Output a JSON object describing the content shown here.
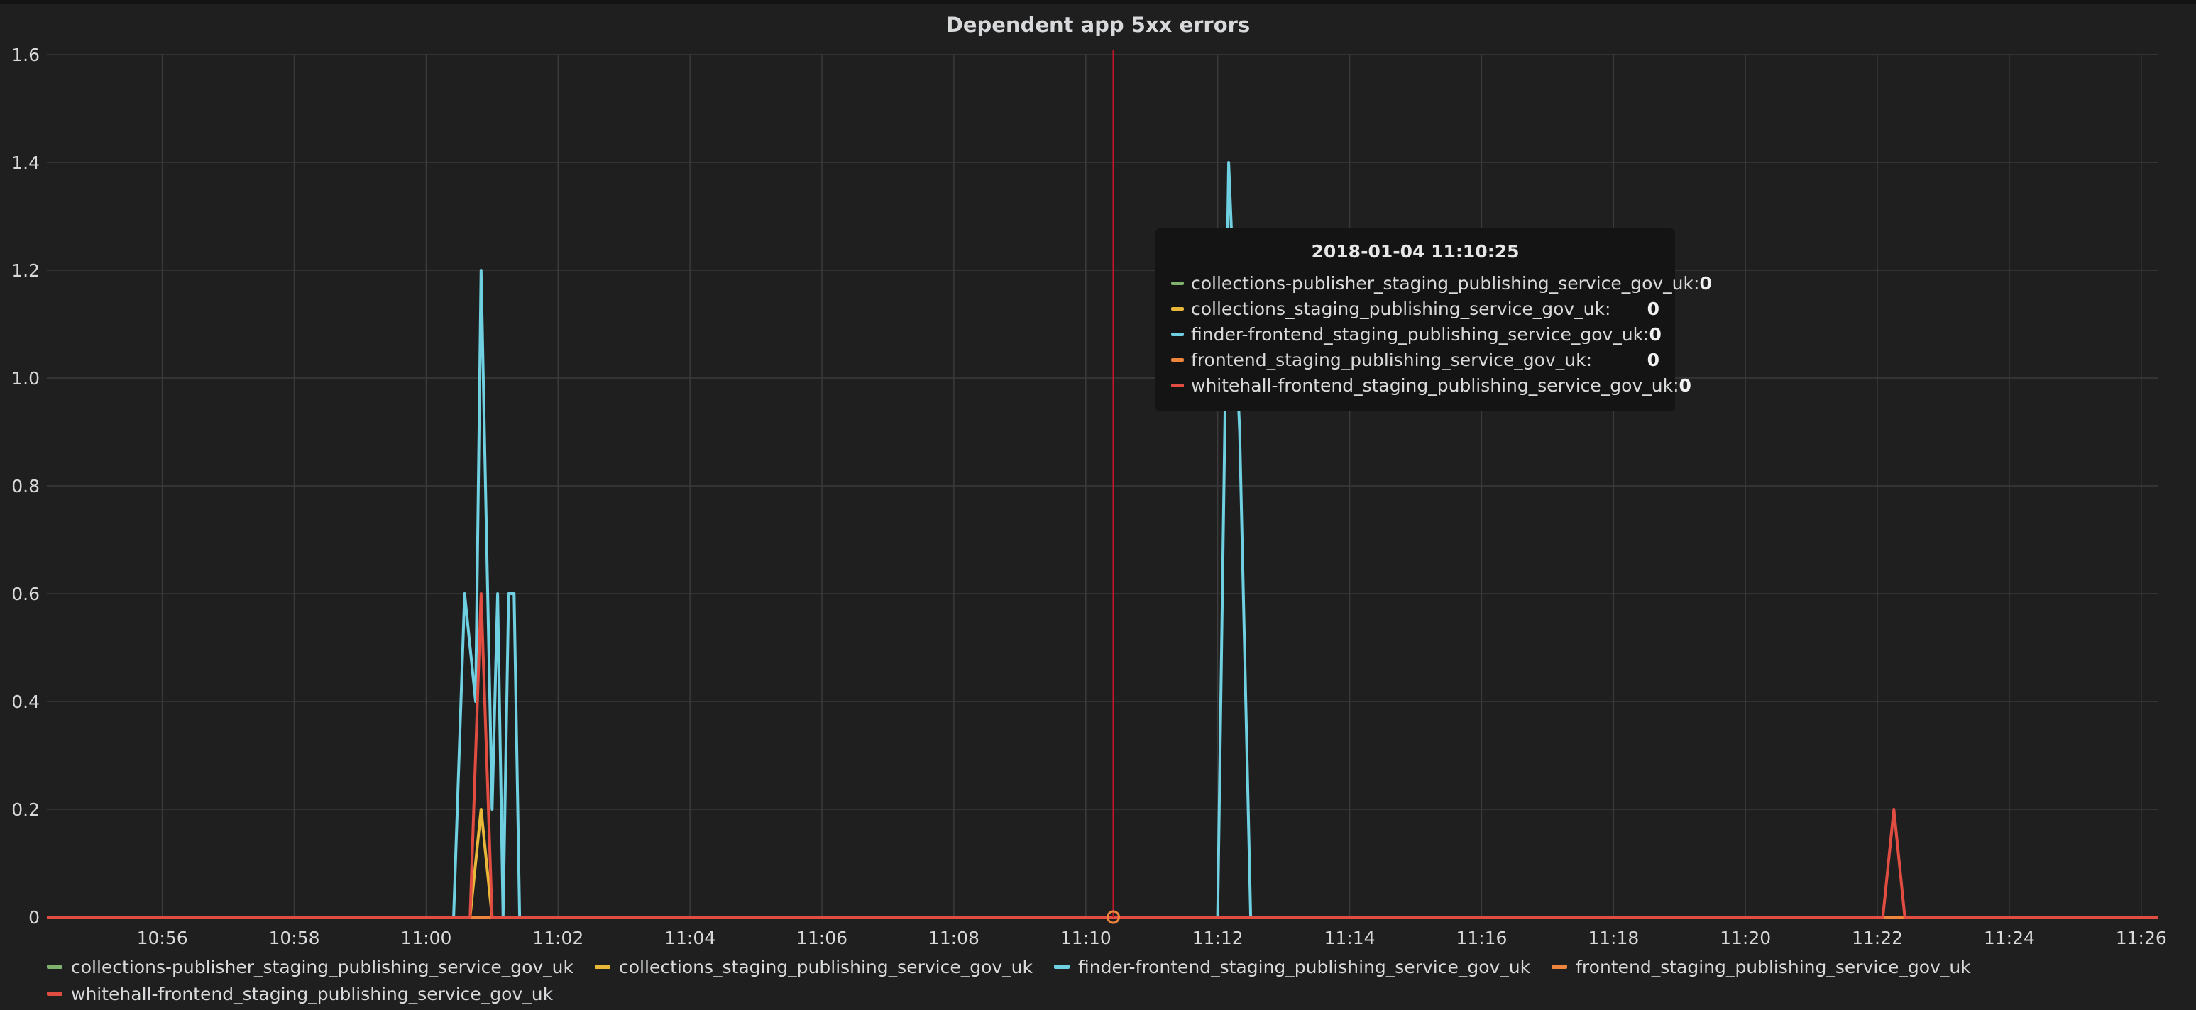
{
  "panel": {
    "title": "Dependent app 5xx errors"
  },
  "chart_data": {
    "type": "line",
    "title": "Dependent app 5xx errors",
    "xlabel": "",
    "ylabel": "",
    "x_unit": "time (HH:MM)",
    "xlim": [
      "10:54:15",
      "11:26:15"
    ],
    "ylim": [
      0,
      1.6
    ],
    "x_ticks": [
      "10:56",
      "10:58",
      "11:00",
      "11:02",
      "11:04",
      "11:06",
      "11:08",
      "11:10",
      "11:12",
      "11:14",
      "11:16",
      "11:18",
      "11:20",
      "11:22",
      "11:24",
      "11:26"
    ],
    "y_ticks": [
      "0",
      "0.2",
      "0.4",
      "0.6",
      "0.8",
      "1.0",
      "1.2",
      "1.4",
      "1.6"
    ],
    "grid": true,
    "legend_position": "bottom",
    "series": [
      {
        "name": "collections-publisher_staging_publishing_service_gov_uk",
        "color": "#7eb26d",
        "points": [
          [
            "10:54:15",
            0
          ],
          [
            "11:26:15",
            0
          ]
        ]
      },
      {
        "name": "collections_staging_publishing_service_gov_uk",
        "color": "#eab839",
        "points": [
          [
            "10:54:15",
            0
          ],
          [
            "11:00:40",
            0
          ],
          [
            "11:00:50",
            0.2
          ],
          [
            "11:01:00",
            0
          ],
          [
            "11:26:15",
            0
          ]
        ]
      },
      {
        "name": "finder-frontend_staging_publishing_service_gov_uk",
        "color": "#6ed0e0",
        "points": [
          [
            "10:54:15",
            0
          ],
          [
            "11:00:25",
            0
          ],
          [
            "11:00:35",
            0.6
          ],
          [
            "11:00:45",
            0.4
          ],
          [
            "11:00:50",
            1.2
          ],
          [
            "11:01:00",
            0.2
          ],
          [
            "11:01:05",
            0.6
          ],
          [
            "11:01:10",
            0
          ],
          [
            "11:01:15",
            0.6
          ],
          [
            "11:01:20",
            0.6
          ],
          [
            "11:01:25",
            0
          ],
          [
            "11:12:00",
            0
          ],
          [
            "11:12:10",
            1.4
          ],
          [
            "11:12:20",
            0.9
          ],
          [
            "11:12:30",
            0
          ],
          [
            "11:26:15",
            0
          ]
        ]
      },
      {
        "name": "frontend_staging_publishing_service_gov_uk",
        "color": "#ef843c",
        "points": [
          [
            "10:54:15",
            0
          ],
          [
            "11:26:15",
            0
          ]
        ]
      },
      {
        "name": "whitehall-frontend_staging_publishing_service_gov_uk",
        "color": "#e24d42",
        "points": [
          [
            "10:54:15",
            0
          ],
          [
            "11:00:40",
            0
          ],
          [
            "11:00:50",
            0.6
          ],
          [
            "11:01:00",
            0
          ],
          [
            "11:22:05",
            0
          ],
          [
            "11:22:15",
            0.2
          ],
          [
            "11:22:25",
            0
          ],
          [
            "11:26:15",
            0
          ]
        ]
      }
    ],
    "crosshair_time": "11:10:25"
  },
  "tooltip": {
    "time": "2018-01-04 11:10:25",
    "rows": [
      {
        "name": "collections-publisher_staging_publishing_service_gov_uk:",
        "value": "0",
        "color": "#7eb26d"
      },
      {
        "name": "collections_staging_publishing_service_gov_uk:",
        "value": "0",
        "color": "#eab839"
      },
      {
        "name": "finder-frontend_staging_publishing_service_gov_uk:",
        "value": "0",
        "color": "#6ed0e0"
      },
      {
        "name": "frontend_staging_publishing_service_gov_uk:",
        "value": "0",
        "color": "#ef843c"
      },
      {
        "name": "whitehall-frontend_staging_publishing_service_gov_uk:",
        "value": "0",
        "color": "#e24d42"
      }
    ]
  },
  "legend": {
    "items": [
      {
        "name": "collections-publisher_staging_publishing_service_gov_uk",
        "color": "#7eb26d"
      },
      {
        "name": "collections_staging_publishing_service_gov_uk",
        "color": "#eab839"
      },
      {
        "name": "finder-frontend_staging_publishing_service_gov_uk",
        "color": "#6ed0e0"
      },
      {
        "name": "frontend_staging_publishing_service_gov_uk",
        "color": "#ef843c"
      },
      {
        "name": "whitehall-frontend_staging_publishing_service_gov_uk",
        "color": "#e24d42"
      }
    ]
  },
  "colors": {
    "background": "#1f1f20",
    "grid": "#3a3a3b",
    "crosshair": "#c4162a"
  }
}
